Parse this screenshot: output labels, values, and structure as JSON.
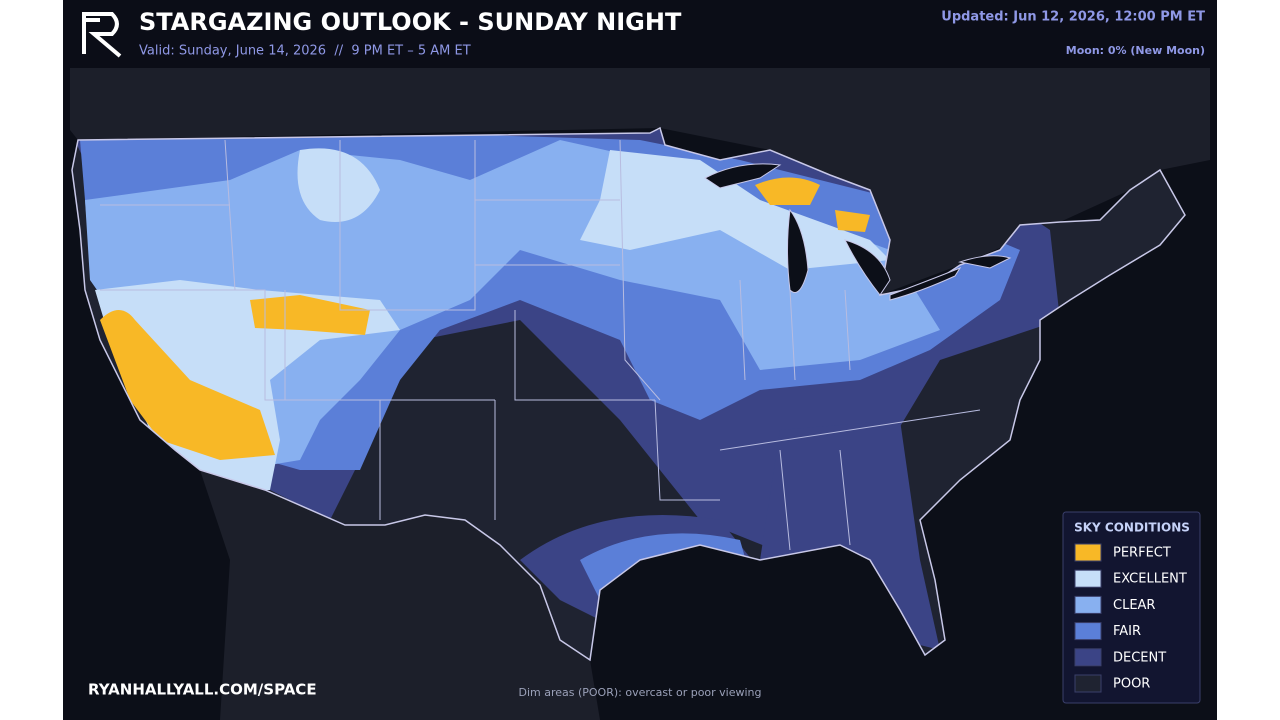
{
  "header": {
    "title": "STARGAZING OUTLOOK - SUNDAY NIGHT",
    "valid": "Valid: Sunday, June 14, 2026  //  9 PM ET – 5 AM ET",
    "updated": "Updated: Jun 12, 2026, 12:00 PM ET",
    "moon": "Moon: 0% (New Moon)"
  },
  "legend": {
    "title": "SKY CONDITIONS",
    "items": [
      {
        "label": "PERFECT",
        "color": "#f8b826"
      },
      {
        "label": "EXCELLENT",
        "color": "#c6def8"
      },
      {
        "label": "CLEAR",
        "color": "#88b0f0"
      },
      {
        "label": "FAIR",
        "color": "#5b7fd8"
      },
      {
        "label": "DECENT",
        "color": "#3b4486"
      },
      {
        "label": "POOR",
        "color": "#1f2331"
      }
    ]
  },
  "footer": {
    "website": "RYANHALLYALL.COM/SPACE",
    "note": "Dim areas (POOR): overcast or poor viewing"
  }
}
